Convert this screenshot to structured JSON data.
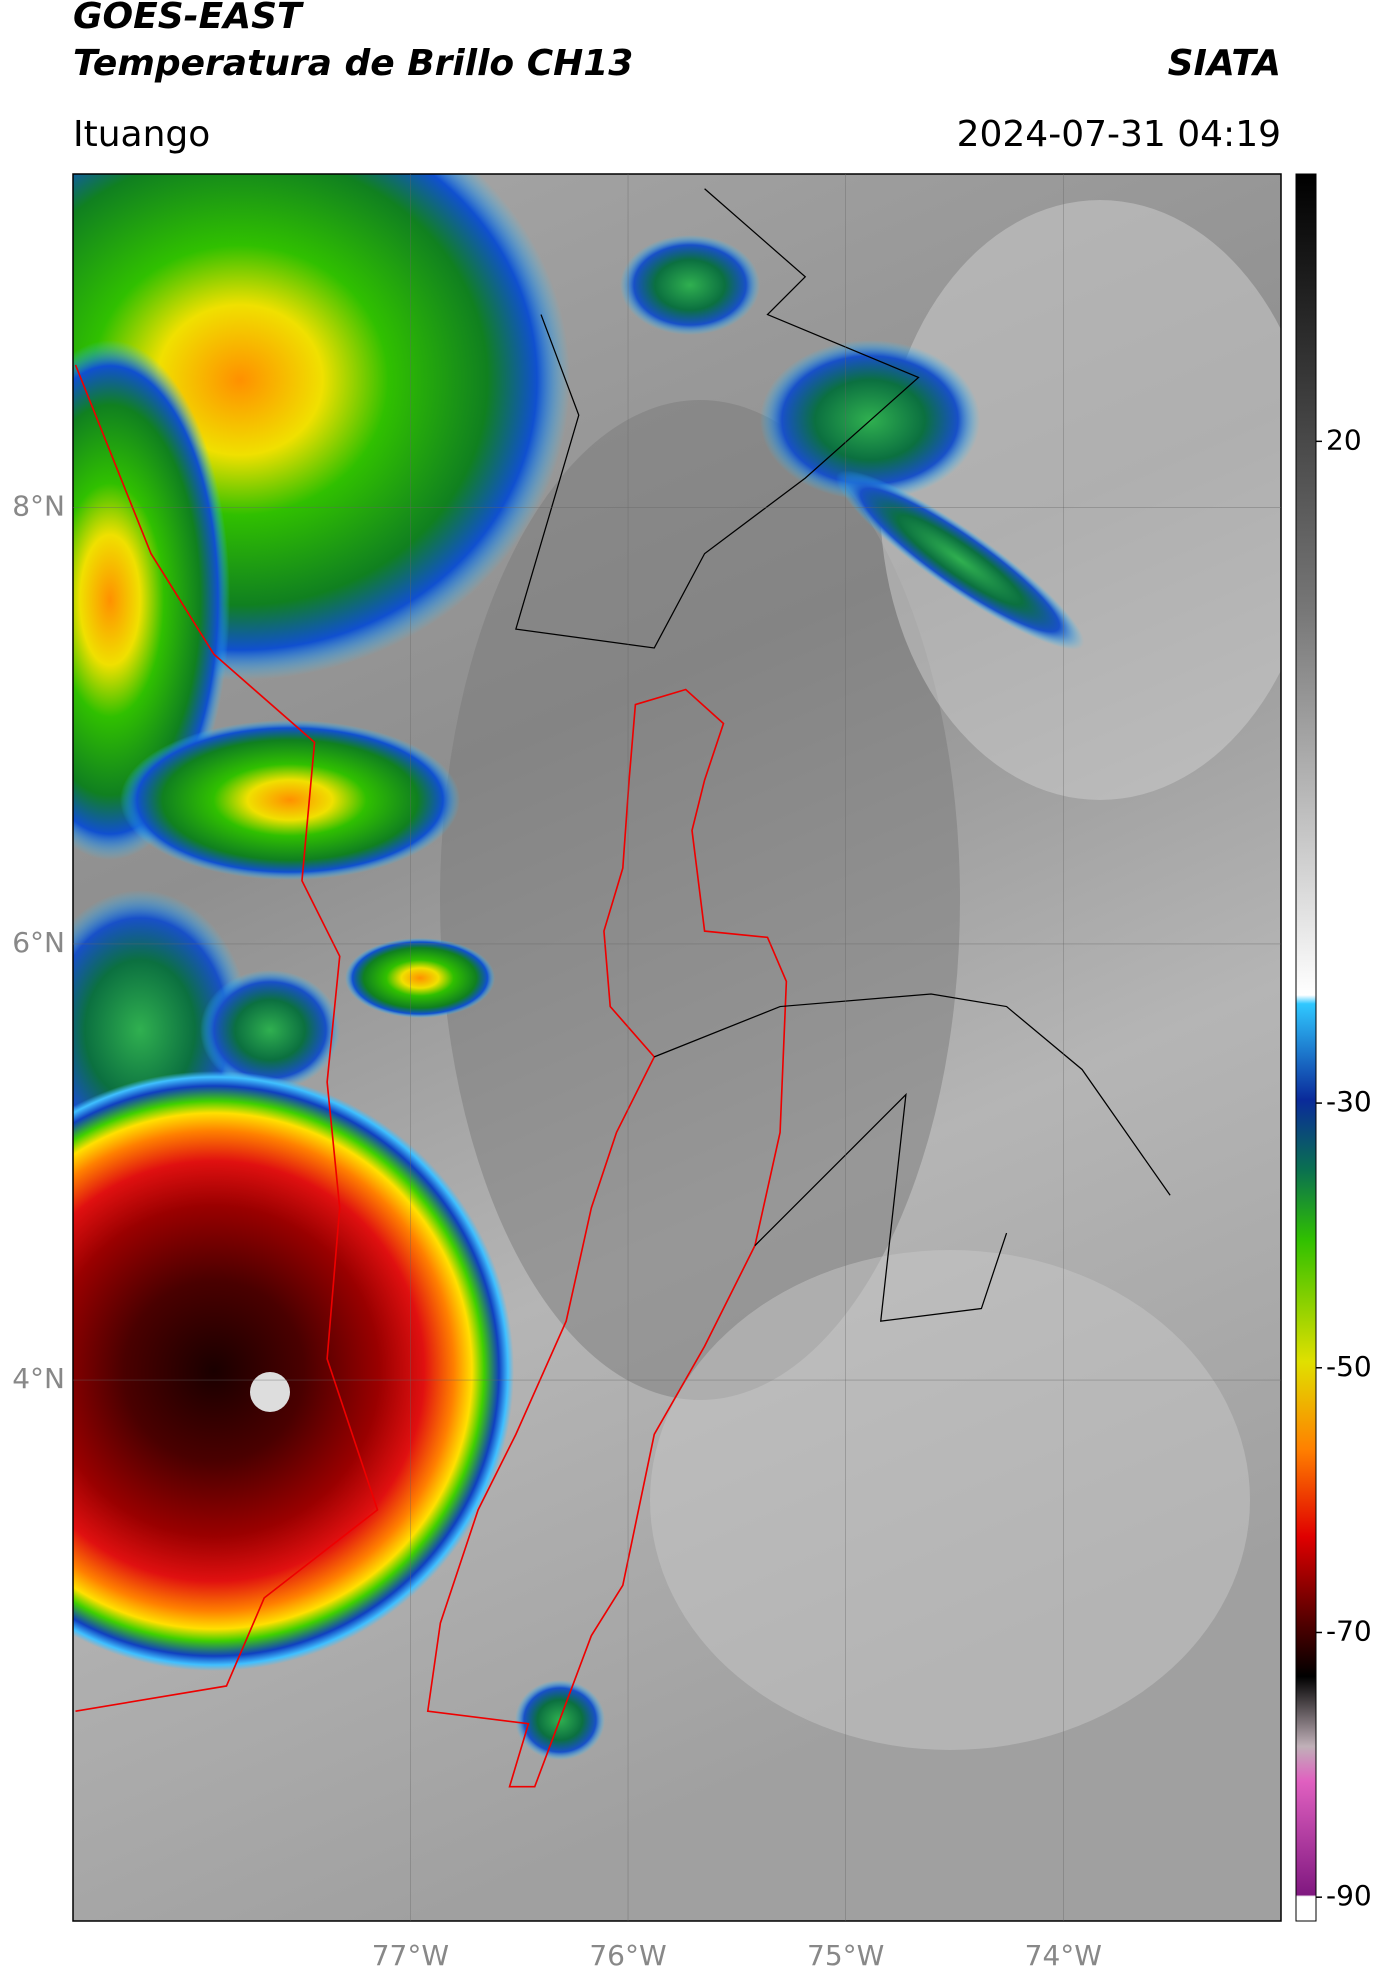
{
  "header": {
    "title": "GOES-EAST",
    "subtitle": "Temperatura de Brillo CH13",
    "organization": "SIATA",
    "location": "Ituango",
    "timestamp": "2024-07-31 04:19"
  },
  "map": {
    "lonlim": [
      -78.55,
      -73.0
    ],
    "latlim": [
      1.52,
      9.53
    ],
    "lonticks": [
      {
        "value": -77,
        "label": "77°W"
      },
      {
        "value": -76,
        "label": "76°W"
      },
      {
        "value": -75,
        "label": "75°W"
      },
      {
        "value": -74,
        "label": "74°W"
      }
    ],
    "latticks": [
      {
        "value": 8,
        "label": "8°N"
      },
      {
        "value": 6,
        "label": "6°N"
      },
      {
        "value": 4,
        "label": "4°N"
      }
    ],
    "grid": true
  },
  "colorbar": {
    "lim": [
      -91.8,
      40.2
    ],
    "ticks": [
      20,
      -30,
      -50,
      -70,
      -90
    ]
  }
}
